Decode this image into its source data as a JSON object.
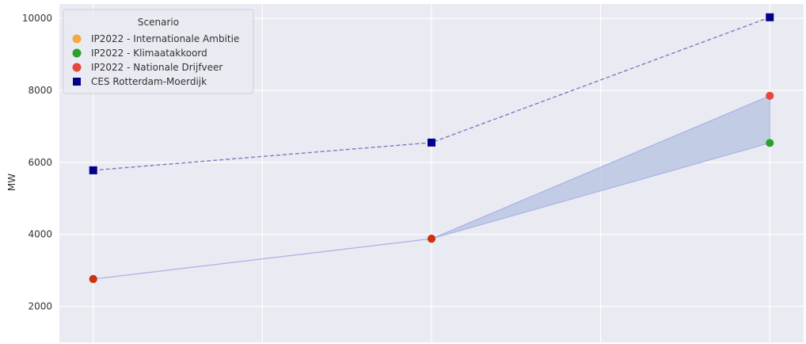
{
  "chart_data": {
    "type": "line",
    "ylabel": "MW",
    "ylim": [
      1000,
      10400
    ],
    "yticks": [
      2000,
      4000,
      6000,
      8000,
      10000
    ],
    "x": [
      0,
      1,
      2
    ],
    "xlim": [
      -0.1,
      2.1
    ],
    "grid": true,
    "legend": {
      "title": "Scenario",
      "placement": "top-left",
      "entries": [
        {
          "label": "IP2022 - Internationale Ambitie",
          "color": "#f5a742",
          "marker": "circle"
        },
        {
          "label": "IP2022 - Klimaatakkoord",
          "color": "#2ca02c",
          "marker": "circle"
        },
        {
          "label": "IP2022 - Nationale Drijfveer",
          "color": "#e8453c",
          "marker": "circle"
        },
        {
          "label": "CES Rotterdam-Moerdijk",
          "color": "#00008b",
          "marker": "square"
        }
      ]
    },
    "series": [
      {
        "name": "CES Rotterdam-Moerdijk",
        "color": "#00008b",
        "marker": "square",
        "line": "dashed",
        "values": [
          5780,
          6550,
          10030
        ]
      },
      {
        "name": "IP2022 - Internationale Ambitie",
        "color": "#f5a742",
        "marker": "circle",
        "values": [
          2760,
          3880,
          7850
        ]
      },
      {
        "name": "IP2022 - Klimaatakkoord",
        "color": "#2ca02c",
        "marker": "circle",
        "values": [
          2760,
          3880,
          6540
        ]
      },
      {
        "name": "IP2022 - Nationale Drijfveer",
        "color": "#e8453c",
        "marker": "circle",
        "values": [
          2760,
          3880,
          7850
        ]
      }
    ],
    "band": {
      "lower": [
        2760,
        3880,
        6540
      ],
      "upper": [
        2760,
        3880,
        7850
      ],
      "color": "#b8c4e0"
    },
    "colors": {
      "plot_bg": "#eaeaf2",
      "grid": "#ffffff",
      "dashed_line": "#7b7bc4",
      "band_edge": "#a9b3e6",
      "overlap_marker": "#cc3311"
    }
  }
}
